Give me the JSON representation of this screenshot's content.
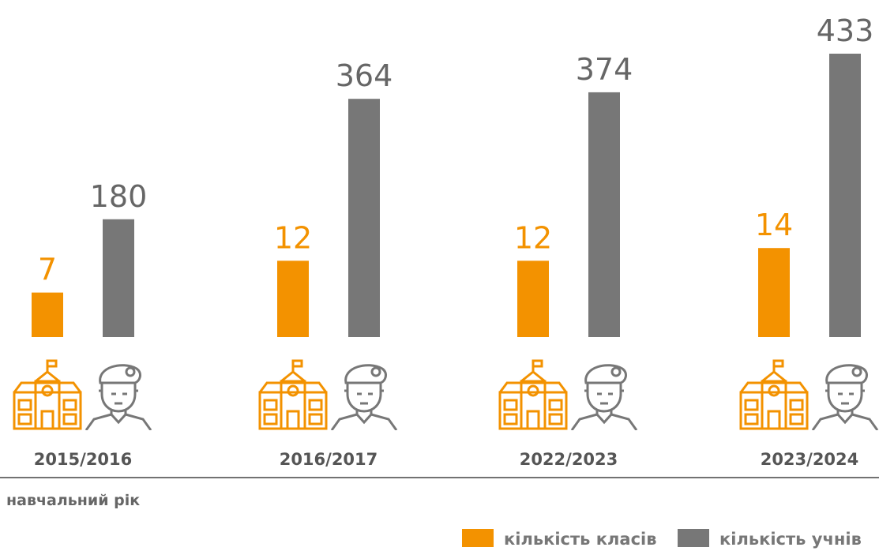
{
  "chart_data": {
    "type": "bar",
    "x_label": "навчальний рік",
    "categories": [
      "2015/2016",
      "2016/2017",
      "2022/2023",
      "2023/2024"
    ],
    "series": [
      {
        "name": "кількість класів",
        "color": "#f39200",
        "values": [
          7,
          12,
          12,
          14
        ],
        "axis": "y2"
      },
      {
        "name": "кількість учнів",
        "color": "#777777",
        "values": [
          180,
          364,
          374,
          433
        ]
      }
    ],
    "ylim": [
      0,
      515
    ],
    "y2lim": [
      0,
      53
    ],
    "legend": "bottom-right"
  }
}
